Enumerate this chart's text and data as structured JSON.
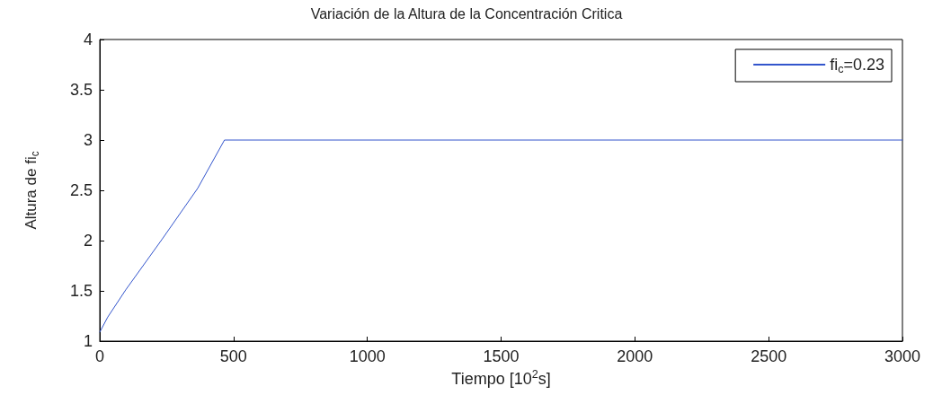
{
  "chart_data": {
    "type": "line",
    "title": "Variación de la Altura de la Concentración Critica",
    "xlabel": "Tiempo [10$^{2}$s]",
    "ylabel": "Altura de fi$_{c}$",
    "series": [
      {
        "name": "fi$_{c}$=0.23",
        "color": "#3355cc",
        "x": [
          0,
          30,
          97,
          232,
          366,
          466,
          470,
          3000
        ],
        "values": [
          1.09,
          1.24,
          1.51,
          2.01,
          2.52,
          3.0,
          3.0,
          3.0
        ]
      }
    ],
    "xlim": [
      0,
      3000
    ],
    "xticks": [
      0,
      500,
      1000,
      1500,
      2000,
      2500,
      3000
    ],
    "ylim": [
      1,
      4
    ],
    "yticks": [
      1,
      1.5,
      2,
      2.5,
      3,
      3.5,
      4
    ],
    "grid": false,
    "legend": "top right",
    "marker": "none",
    "line_style": "solid"
  }
}
